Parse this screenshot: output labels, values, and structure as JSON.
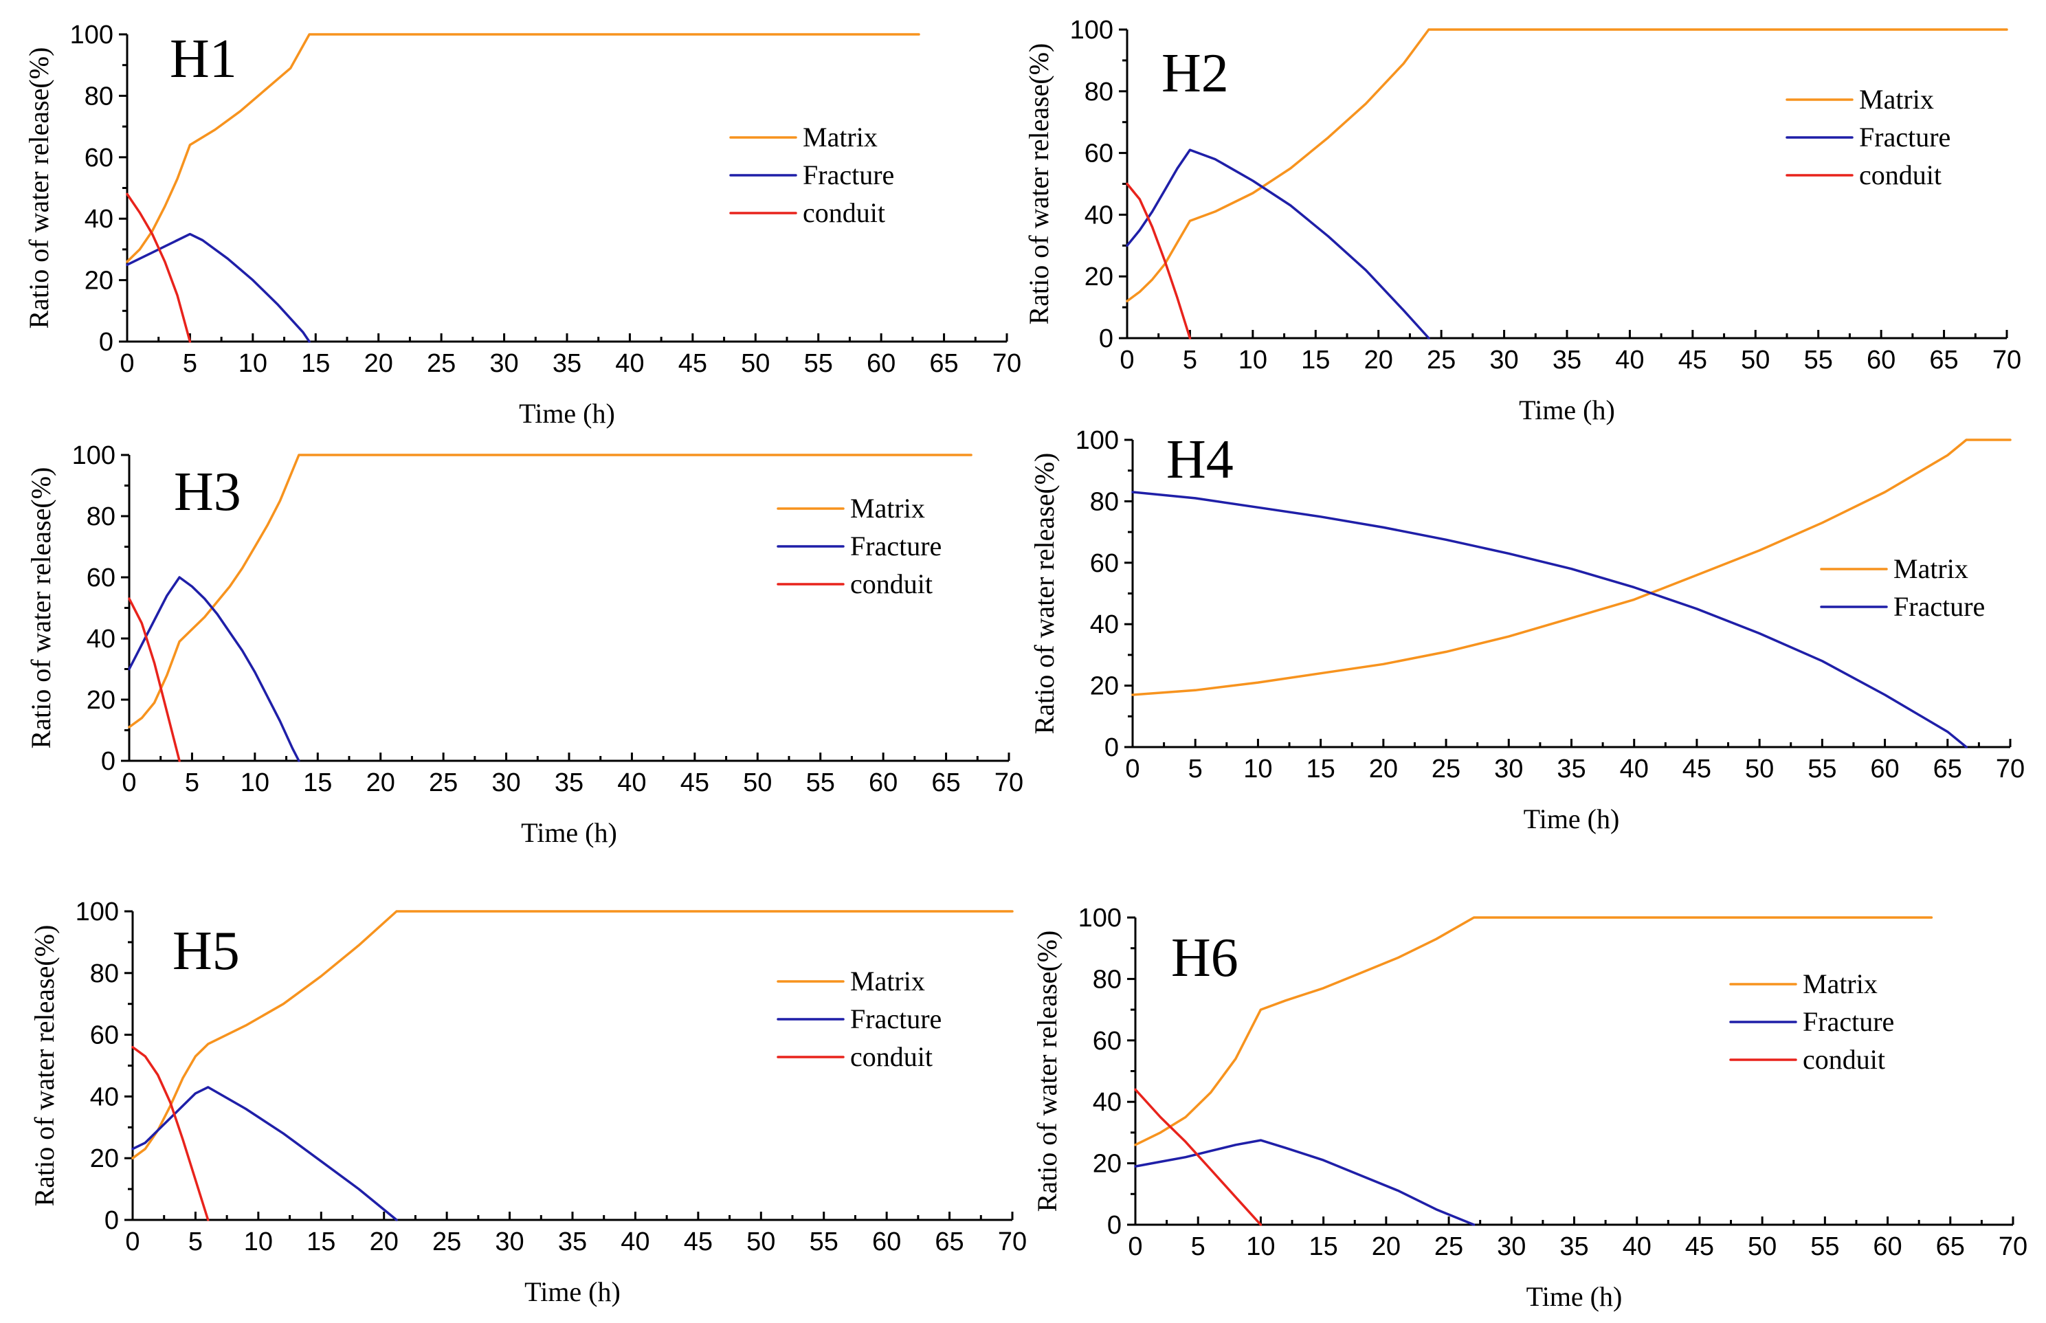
{
  "figure": {
    "colors": {
      "Matrix": "#F7931E",
      "Fracture": "#1F1FA8",
      "conduit": "#E8231C"
    }
  },
  "chart_data": [
    {
      "id": "H1",
      "type": "line",
      "panel_label": "H1",
      "xlabel": "Time (h)",
      "ylabel": "Ratio of water release(%)",
      "xlim": [
        0,
        70
      ],
      "ylim": [
        0,
        100
      ],
      "xticks": [
        0,
        5,
        10,
        15,
        20,
        25,
        30,
        35,
        40,
        45,
        50,
        55,
        60,
        65,
        70
      ],
      "yticks": [
        0,
        20,
        40,
        60,
        80,
        100
      ],
      "series": [
        {
          "name": "Matrix",
          "x": [
            0,
            1,
            2,
            3,
            4,
            5,
            7,
            9,
            11,
            13,
            14.5,
            20,
            30,
            40,
            50,
            60,
            63
          ],
          "y": [
            26,
            30,
            36,
            44,
            53,
            64,
            69,
            75,
            82,
            89,
            100,
            100,
            100,
            100,
            100,
            100,
            100
          ]
        },
        {
          "name": "Fracture",
          "x": [
            0,
            1,
            2,
            3,
            4,
            5,
            6,
            8,
            10,
            12,
            14,
            14.5
          ],
          "y": [
            25,
            27,
            29,
            31,
            33,
            35,
            33,
            27,
            20,
            12,
            3,
            0
          ]
        },
        {
          "name": "conduit",
          "x": [
            0,
            1,
            2,
            3,
            4,
            5
          ],
          "y": [
            48,
            42,
            35,
            26,
            15,
            0
          ]
        }
      ]
    },
    {
      "id": "H2",
      "type": "line",
      "panel_label": "H2",
      "xlabel": "Time (h)",
      "ylabel": "Ratio of water release(%)",
      "xlim": [
        0,
        70
      ],
      "ylim": [
        0,
        100
      ],
      "xticks": [
        0,
        5,
        10,
        15,
        20,
        25,
        30,
        35,
        40,
        45,
        50,
        55,
        60,
        65,
        70
      ],
      "yticks": [
        0,
        20,
        40,
        60,
        80,
        100
      ],
      "series": [
        {
          "name": "Matrix",
          "x": [
            0,
            1,
            2,
            3,
            4,
            5,
            7,
            10,
            13,
            16,
            19,
            22,
            24,
            30,
            40,
            50,
            60,
            70
          ],
          "y": [
            12,
            15,
            19,
            24,
            31,
            38,
            41,
            47,
            55,
            65,
            76,
            89,
            100,
            100,
            100,
            100,
            100,
            100
          ]
        },
        {
          "name": "Fracture",
          "x": [
            0,
            1,
            2,
            3,
            4,
            5,
            7,
            10,
            13,
            16,
            19,
            22,
            24
          ],
          "y": [
            30,
            35,
            41,
            48,
            55,
            61,
            58,
            51,
            43,
            33,
            22,
            9,
            0
          ]
        },
        {
          "name": "conduit",
          "x": [
            0,
            1,
            2,
            3,
            4,
            5
          ],
          "y": [
            50,
            45,
            36,
            25,
            13,
            0
          ]
        }
      ]
    },
    {
      "id": "H3",
      "type": "line",
      "panel_label": "H3",
      "xlabel": "Time (h)",
      "ylabel": "Ratio of water release(%)",
      "xlim": [
        0,
        70
      ],
      "ylim": [
        0,
        100
      ],
      "xticks": [
        0,
        5,
        10,
        15,
        20,
        25,
        30,
        35,
        40,
        45,
        50,
        55,
        60,
        65,
        70
      ],
      "yticks": [
        0,
        20,
        40,
        60,
        80,
        100
      ],
      "series": [
        {
          "name": "Matrix",
          "x": [
            0,
            1,
            2,
            3,
            4,
            5,
            6,
            7,
            8,
            9,
            10,
            11,
            12,
            13.5,
            20,
            30,
            40,
            50,
            60,
            67
          ],
          "y": [
            11,
            14,
            19,
            28,
            39,
            43,
            47,
            52,
            57,
            63,
            70,
            77,
            85,
            100,
            100,
            100,
            100,
            100,
            100,
            100
          ]
        },
        {
          "name": "Fracture",
          "x": [
            0,
            1,
            2,
            3,
            4,
            5,
            6,
            7,
            8,
            9,
            10,
            11,
            12,
            13,
            13.5
          ],
          "y": [
            30,
            38,
            46,
            54,
            60,
            57,
            53,
            48,
            42,
            36,
            29,
            21,
            13,
            4,
            0
          ]
        },
        {
          "name": "conduit",
          "x": [
            0,
            1,
            2,
            3,
            4
          ],
          "y": [
            53,
            45,
            32,
            16,
            0
          ]
        }
      ]
    },
    {
      "id": "H4",
      "type": "line",
      "panel_label": "H4",
      "xlabel": "Time (h)",
      "ylabel": "Ratio of water release(%)",
      "xlim": [
        0,
        70
      ],
      "ylim": [
        0,
        100
      ],
      "xticks": [
        0,
        5,
        10,
        15,
        20,
        25,
        30,
        35,
        40,
        45,
        50,
        55,
        60,
        65,
        70
      ],
      "yticks": [
        0,
        20,
        40,
        60,
        80,
        100
      ],
      "series": [
        {
          "name": "Matrix",
          "x": [
            0,
            5,
            10,
            15,
            20,
            25,
            30,
            35,
            40,
            45,
            50,
            55,
            60,
            65,
            66.5,
            70
          ],
          "y": [
            17,
            18.5,
            21,
            24,
            27,
            31,
            36,
            42,
            48,
            56,
            64,
            73,
            83,
            95,
            100,
            100
          ]
        },
        {
          "name": "Fracture",
          "x": [
            0,
            5,
            10,
            15,
            20,
            25,
            30,
            35,
            40,
            45,
            50,
            55,
            60,
            65,
            66.5
          ],
          "y": [
            83,
            81,
            78,
            75,
            71.5,
            67.5,
            63,
            58,
            52,
            45,
            37,
            28,
            17,
            5,
            0
          ]
        }
      ]
    },
    {
      "id": "H5",
      "type": "line",
      "panel_label": "H5",
      "xlabel": "Time (h)",
      "ylabel": "Ratio of water release(%)",
      "xlim": [
        0,
        70
      ],
      "ylim": [
        0,
        100
      ],
      "xticks": [
        0,
        5,
        10,
        15,
        20,
        25,
        30,
        35,
        40,
        45,
        50,
        55,
        60,
        65,
        70
      ],
      "yticks": [
        0,
        20,
        40,
        60,
        80,
        100
      ],
      "series": [
        {
          "name": "Matrix",
          "x": [
            0,
            1,
            2,
            3,
            4,
            5,
            6,
            9,
            12,
            15,
            18,
            21,
            30,
            40,
            50,
            60,
            70
          ],
          "y": [
            20,
            23,
            29,
            37,
            46,
            53,
            57,
            63,
            70,
            79,
            89,
            100,
            100,
            100,
            100,
            100,
            100
          ]
        },
        {
          "name": "Fracture",
          "x": [
            0,
            1,
            2,
            3,
            4,
            5,
            6,
            9,
            12,
            15,
            18,
            21
          ],
          "y": [
            23,
            25,
            29,
            33,
            37,
            41,
            43,
            36,
            28,
            19,
            10,
            0
          ]
        },
        {
          "name": "conduit",
          "x": [
            0,
            1,
            2,
            3,
            4,
            5,
            6
          ],
          "y": [
            56,
            53,
            47,
            38,
            26,
            13,
            0
          ]
        }
      ]
    },
    {
      "id": "H6",
      "type": "line",
      "panel_label": "H6",
      "xlabel": "Time (h)",
      "ylabel": "Ratio of water release(%)",
      "xlim": [
        0,
        70
      ],
      "ylim": [
        0,
        100
      ],
      "xticks": [
        0,
        5,
        10,
        15,
        20,
        25,
        30,
        35,
        40,
        45,
        50,
        55,
        60,
        65,
        70
      ],
      "yticks": [
        0,
        20,
        40,
        60,
        80,
        100
      ],
      "series": [
        {
          "name": "Matrix",
          "x": [
            0,
            2,
            4,
            6,
            8,
            10,
            12,
            15,
            18,
            21,
            24,
            27,
            30,
            40,
            50,
            60,
            63.5
          ],
          "y": [
            26,
            30,
            35,
            43,
            54,
            70,
            73,
            77,
            82,
            87,
            93,
            100,
            100,
            100,
            100,
            100,
            100
          ]
        },
        {
          "name": "Fracture",
          "x": [
            0,
            2,
            4,
            6,
            8,
            10,
            12,
            15,
            18,
            21,
            24,
            27
          ],
          "y": [
            19,
            20.5,
            22,
            24,
            26,
            27.5,
            25,
            21,
            16,
            11,
            5,
            0
          ]
        },
        {
          "name": "conduit",
          "x": [
            0,
            2,
            4,
            6,
            8,
            10
          ],
          "y": [
            44,
            35,
            27,
            18,
            9,
            0
          ]
        }
      ]
    }
  ]
}
